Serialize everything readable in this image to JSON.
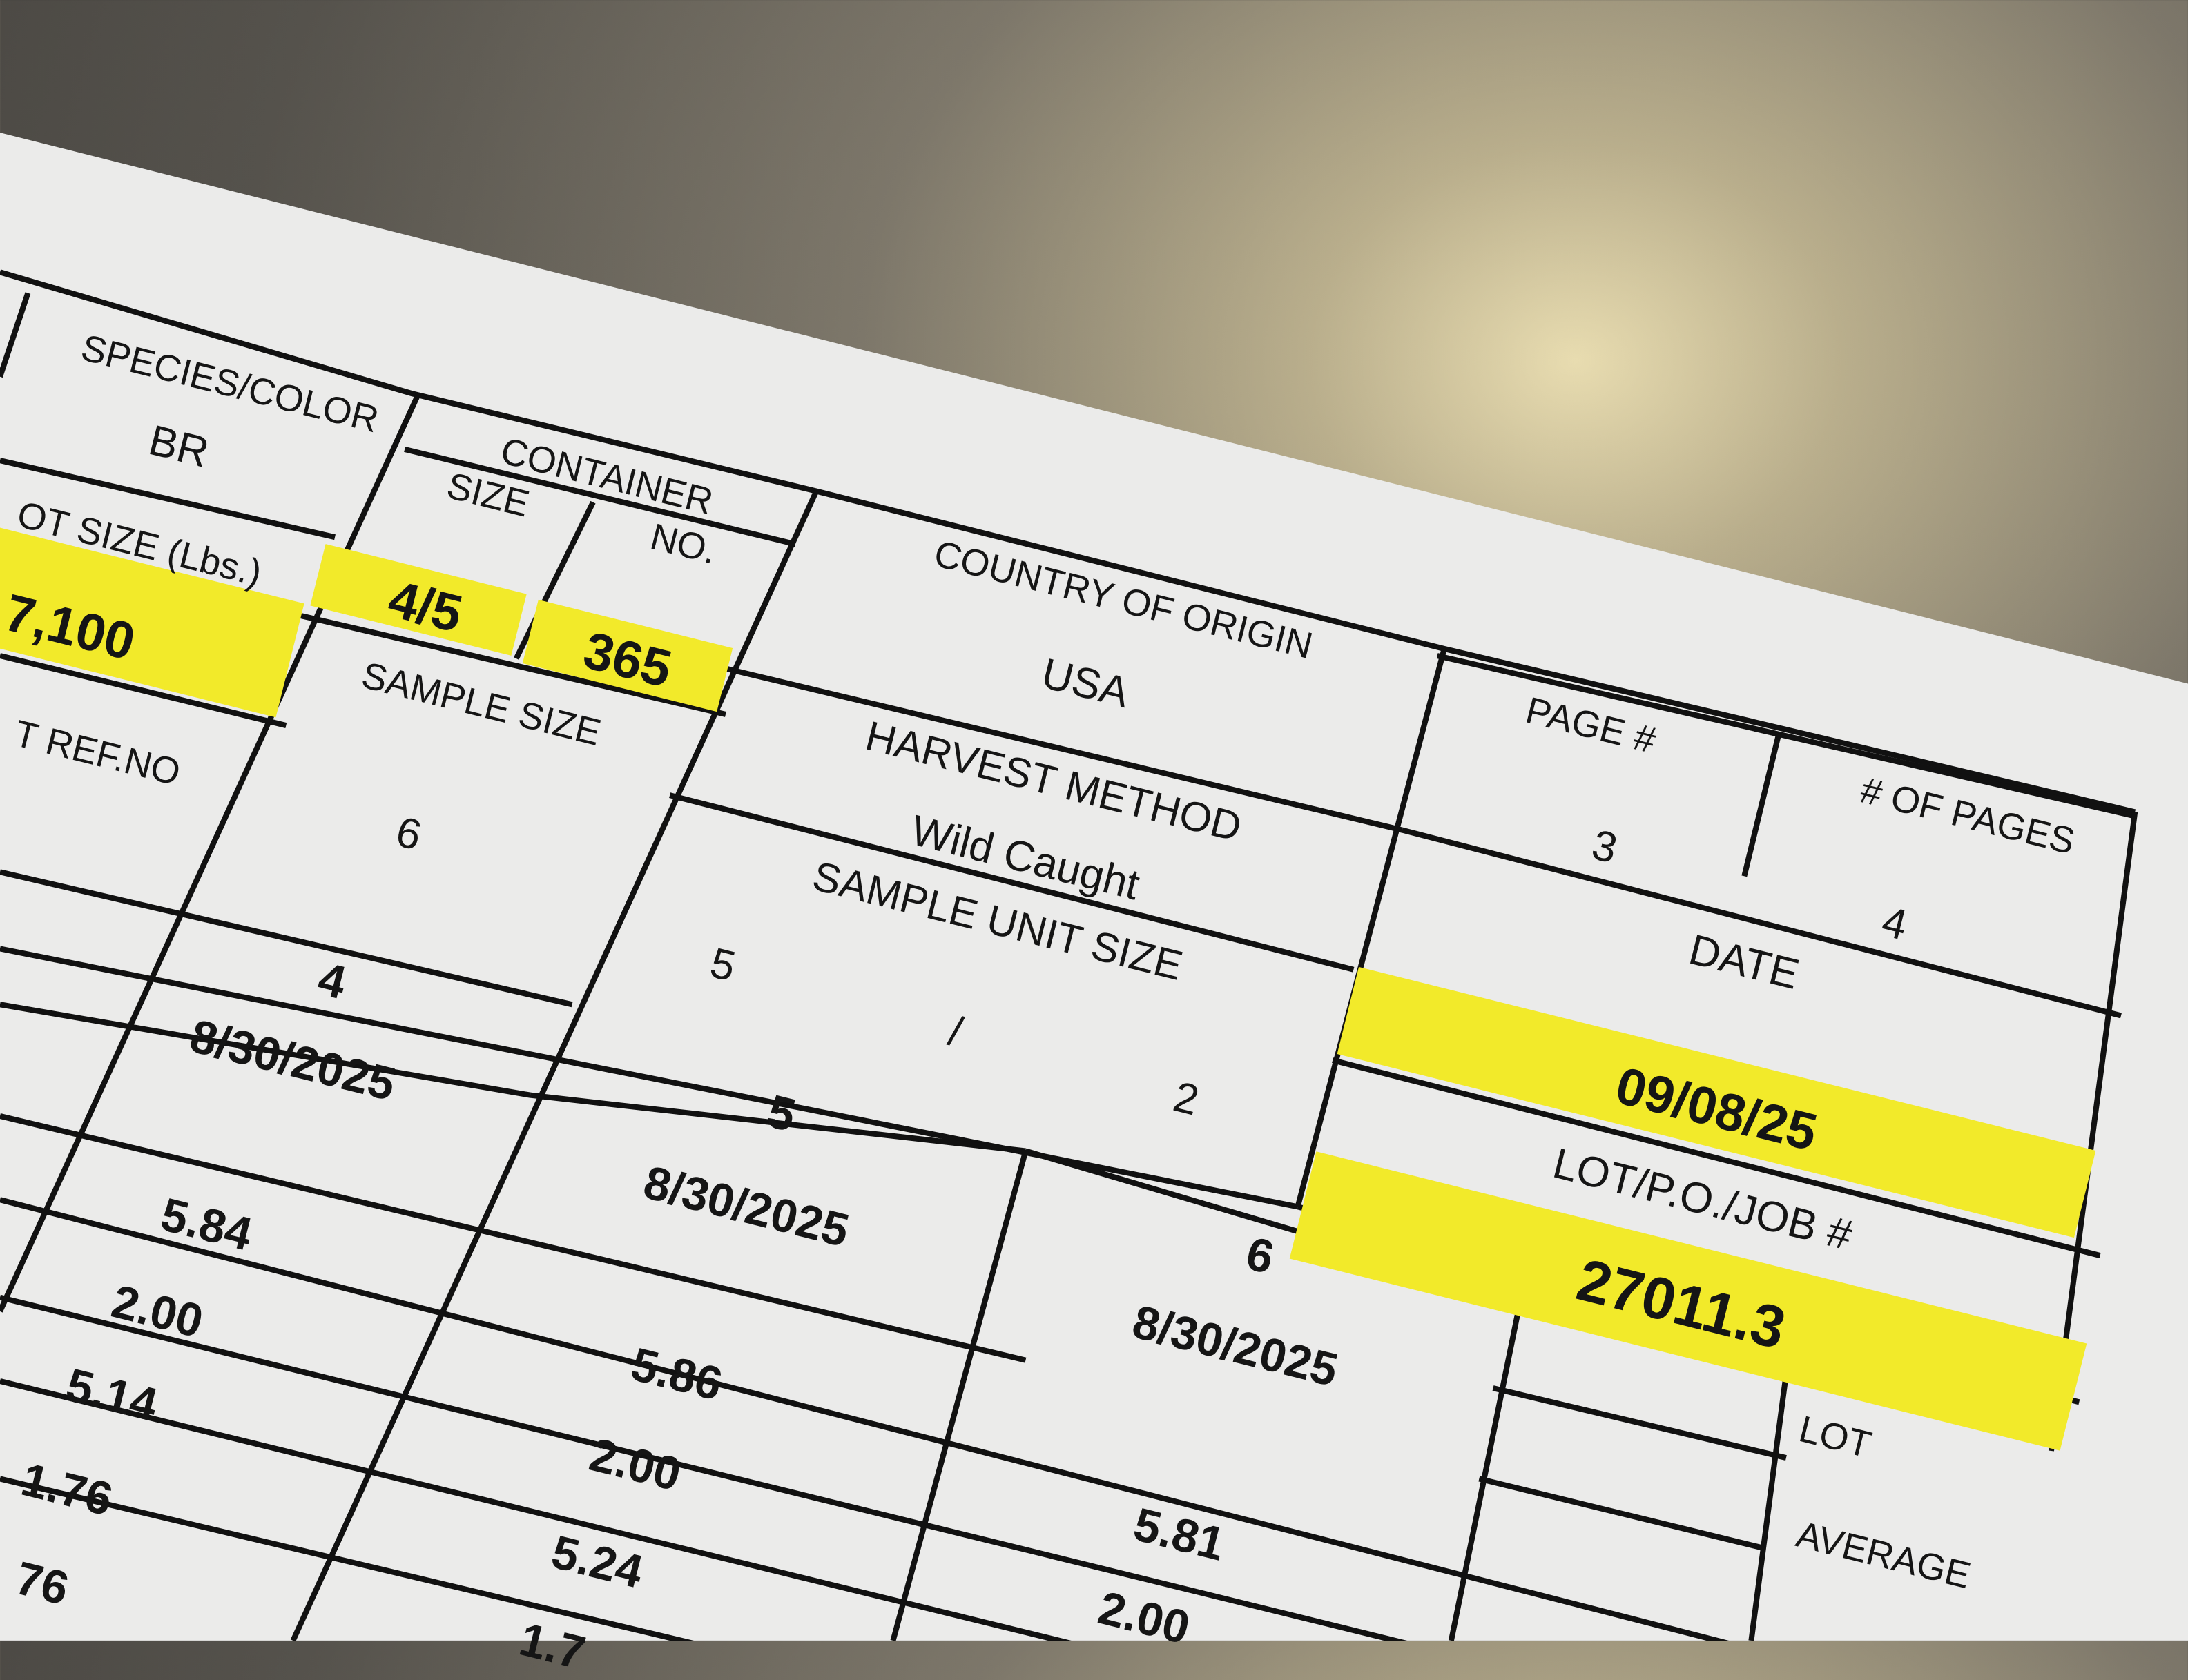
{
  "colors": {
    "highlight": "#f2ea2a",
    "paper": "#ececea",
    "ink": "#151515",
    "surface": "#6e6a60"
  },
  "form": {
    "species_color": {
      "label": "SPECIES/COLOR",
      "value": "BR"
    },
    "lot_size": {
      "label": "OT SIZE (Lbs.)",
      "value": "7,100"
    },
    "ref_no": {
      "label": "T REF.NO"
    },
    "container": {
      "label": "CONTAINER",
      "size_label": "SIZE",
      "size_value": "4/5",
      "no_label": "NO.",
      "no_value": "365"
    },
    "sample_size": {
      "label": "SAMPLE SIZE",
      "value": "6"
    },
    "country_of_origin": {
      "label": "COUNTRY OF  ORIGIN",
      "value": "USA"
    },
    "harvest_method": {
      "label": "HARVEST METHOD",
      "value": "Wild Caught"
    },
    "sample_unit_size": {
      "label": "SAMPLE UNIT SIZE",
      "num": "5",
      "slash": "/",
      "den": "2"
    },
    "page": {
      "label": "PAGE #",
      "value": "3"
    },
    "pages": {
      "label": "# OF PAGES",
      "value": "4"
    },
    "date": {
      "label": "DATE",
      "value": "09/08/25"
    },
    "lot_po_job": {
      "label": "LOT/P.O./JOB #",
      "value": "27011.3"
    },
    "lot_average": {
      "label_1": "LOT",
      "label_2": "AVERAGE"
    }
  },
  "samples": [
    {
      "no": "4",
      "date": "8/30/2025",
      "values": [
        "5.84",
        "2.00",
        "5.14",
        "1.76",
        "76"
      ]
    },
    {
      "no": "5",
      "date": "8/30/2025",
      "values": [
        "5.86",
        "2.00",
        "5.24",
        "1.7"
      ]
    },
    {
      "no": "6",
      "date": "8/30/2025",
      "values": [
        "5.81",
        "2.00"
      ]
    }
  ]
}
